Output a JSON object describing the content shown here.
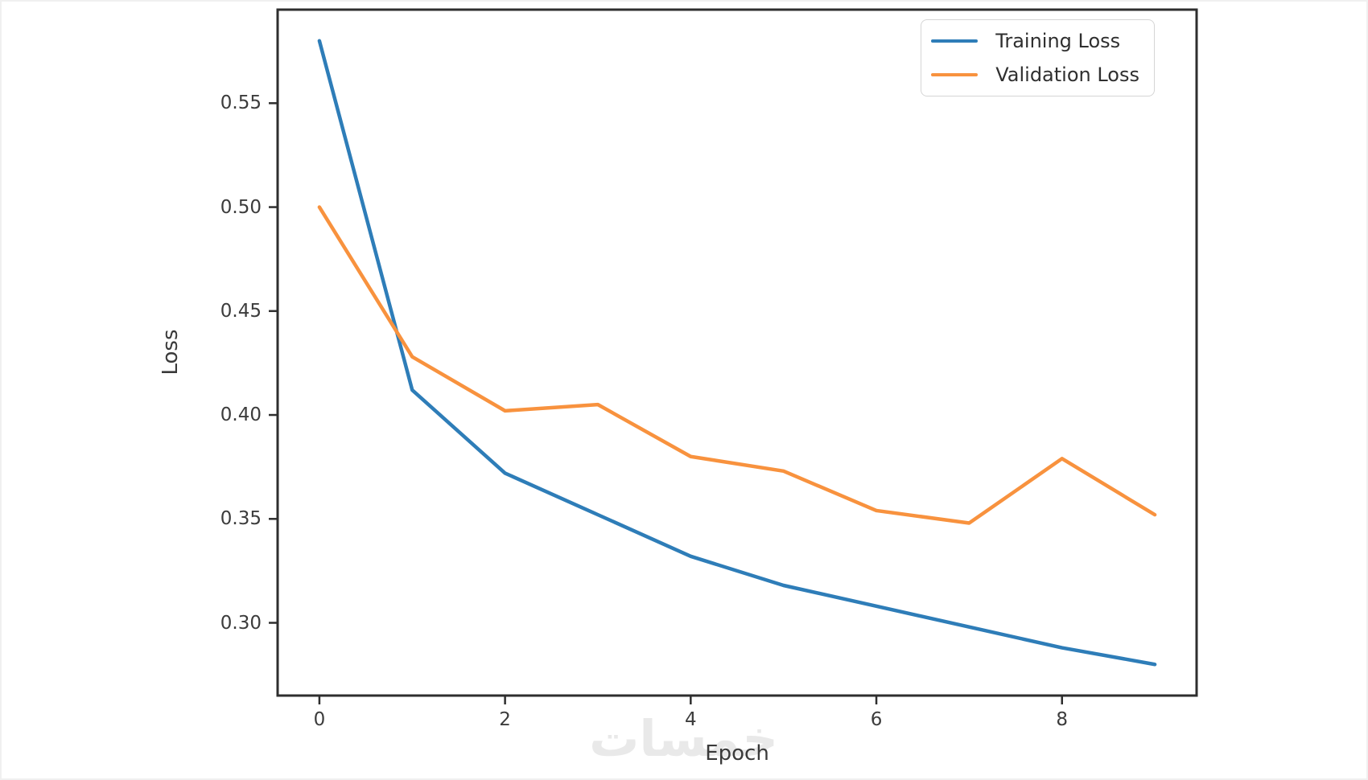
{
  "figure": {
    "background": "#ffffff",
    "watermark_text": "خمسات"
  },
  "colors": {
    "training": "#2e7db8",
    "validation": "#f8923e",
    "axis": "#2e2e2e",
    "tick_text": "#3c3c3c",
    "watermark": "#e9e9e9"
  },
  "chart_data": {
    "type": "line",
    "title": "",
    "xlabel": "Epoch",
    "ylabel": "Loss",
    "x": [
      0,
      1,
      2,
      3,
      4,
      5,
      6,
      7,
      8,
      9
    ],
    "series": [
      {
        "name": "Training Loss",
        "color": "#2e7db8",
        "values": [
          0.58,
          0.412,
          0.372,
          0.352,
          0.332,
          0.318,
          0.308,
          0.298,
          0.288,
          0.28
        ]
      },
      {
        "name": "Validation Loss",
        "color": "#f8923e",
        "values": [
          0.5,
          0.428,
          0.402,
          0.405,
          0.38,
          0.373,
          0.354,
          0.348,
          0.379,
          0.352
        ]
      }
    ],
    "xlim": [
      -0.45,
      9.45
    ],
    "ylim": [
      0.265,
      0.595
    ],
    "xticks": [
      0,
      2,
      4,
      6,
      8
    ],
    "xtick_labels": [
      "0",
      "2",
      "4",
      "6",
      "8"
    ],
    "yticks": [
      0.3,
      0.35,
      0.4,
      0.45,
      0.5,
      0.55
    ],
    "ytick_labels": [
      "0.30",
      "0.35",
      "0.40",
      "0.45",
      "0.50",
      "0.55"
    ],
    "grid": false,
    "legend_position": "upper right"
  }
}
